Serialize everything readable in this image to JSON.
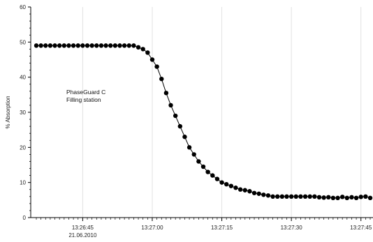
{
  "chart_data": {
    "type": "scatter",
    "ylabel": "% Absorption",
    "xlabel": "",
    "ylim": [
      0,
      60
    ],
    "y_ticks": [
      "0",
      "10",
      "20",
      "30",
      "40",
      "50",
      "60"
    ],
    "x_ticks": [
      "13:26:45",
      "13:27:00",
      "13:27:15",
      "13:27:30",
      "13:27:45"
    ],
    "x_date_label": "21.06.2010",
    "x_unit": "seconds after 13:26:35",
    "xlim": [
      0,
      72
    ],
    "grid": "vertical",
    "annotation": [
      "PhaseGuard C",
      "Filling station"
    ],
    "series": [
      {
        "name": "",
        "color": "#000000",
        "x": [
          0,
          1,
          2,
          3,
          4,
          5,
          6,
          7,
          8,
          9,
          10,
          11,
          12,
          13,
          14,
          15,
          16,
          17,
          18,
          19,
          20,
          21,
          22,
          23,
          24,
          25,
          26,
          27,
          28,
          29,
          30,
          31,
          32,
          33,
          34,
          35,
          36,
          37,
          38,
          39,
          40,
          41,
          42,
          43,
          44,
          45,
          46,
          47,
          48,
          49,
          50,
          51,
          52,
          53,
          54,
          55,
          56,
          57,
          58,
          59,
          60,
          61,
          62,
          63,
          64,
          65,
          66,
          67,
          68,
          69,
          70,
          71,
          72
        ],
        "y": [
          49,
          49,
          49,
          49,
          49,
          49,
          49,
          49,
          49,
          49,
          49,
          49,
          49,
          49,
          49,
          49,
          49,
          49,
          49,
          49,
          49,
          49,
          48.5,
          48,
          47,
          45,
          43,
          39.5,
          35.5,
          32,
          29,
          26,
          23,
          20,
          18,
          16,
          14.5,
          13,
          12,
          11,
          10,
          9.5,
          9,
          8.5,
          8,
          7.8,
          7.5,
          7,
          6.8,
          6.5,
          6.3,
          6,
          6,
          6,
          6,
          6,
          6,
          6,
          6,
          6,
          6,
          5.8,
          5.7,
          5.8,
          5.6,
          5.6,
          5.9,
          5.6,
          5.8,
          5.6,
          5.9,
          6.0,
          5.6
        ]
      }
    ]
  }
}
